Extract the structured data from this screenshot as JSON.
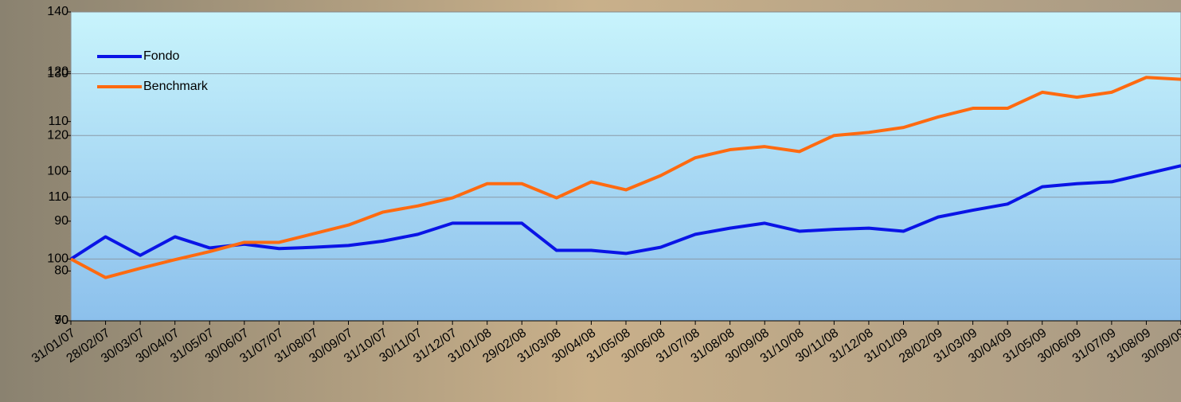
{
  "chart_data": {
    "type": "line",
    "categories": [
      "31/01/07",
      "28/02/07",
      "30/03/07",
      "30/04/07",
      "31/05/07",
      "30/06/07",
      "31/07/07",
      "31/08/07",
      "30/09/07",
      "31/10/07",
      "30/11/07",
      "31/12/07",
      "31/01/08",
      "29/02/08",
      "31/03/08",
      "30/04/08",
      "31/05/08",
      "30/06/08",
      "31/07/08",
      "31/08/08",
      "30/09/08",
      "31/10/08",
      "30/11/08",
      "31/12/08",
      "31/01/09",
      "28/02/09",
      "31/03/09",
      "30/04/09",
      "31/05/09",
      "30/06/09",
      "31/07/09",
      "31/08/09",
      "30/09/09"
    ],
    "series": [
      {
        "name": "Fondo",
        "color": "#0a14e6",
        "values": [
          100,
          103.6,
          100.6,
          103.6,
          101.8,
          102.4,
          101.7,
          101.9,
          102.2,
          102.9,
          104.0,
          105.8,
          105.8,
          105.8,
          101.4,
          101.4,
          100.9,
          101.9,
          104.0,
          105.0,
          105.8,
          104.5,
          104.8,
          105.0,
          104.5,
          106.8,
          107.9,
          108.9,
          111.7,
          112.2,
          112.5,
          113.8,
          115.1
        ]
      },
      {
        "name": "Benchmark",
        "color": "#ff6a10",
        "values": [
          100,
          97.0,
          98.5,
          99.9,
          101.2,
          102.7,
          102.7,
          104.1,
          105.5,
          107.6,
          108.6,
          109.9,
          112.2,
          112.2,
          109.9,
          112.5,
          111.2,
          113.5,
          116.4,
          117.7,
          118.2,
          117.4,
          120.0,
          120.5,
          121.3,
          123.0,
          124.4,
          124.4,
          127.0,
          126.2,
          127.0,
          129.4,
          129.1
        ]
      }
    ],
    "ylim": [
      90,
      140
    ],
    "yticks": [
      90,
      100,
      110,
      120,
      130,
      140
    ],
    "y2lim": [
      70,
      132
    ],
    "y2ticks": [
      70,
      80,
      90,
      100,
      110,
      120
    ],
    "grid": true,
    "legend": "upper left"
  }
}
